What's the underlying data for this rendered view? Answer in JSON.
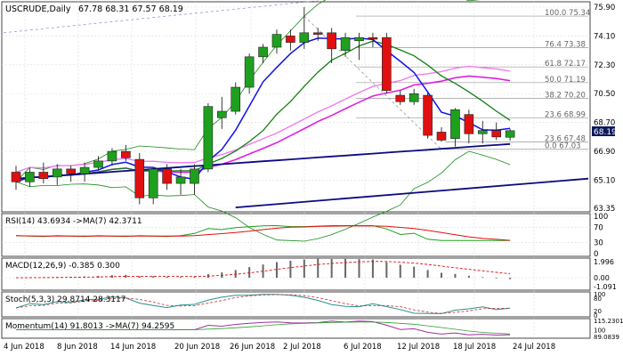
{
  "header": {
    "symbol_label": "USCRUDE,Daily",
    "ohlc_label": "67.78 68.31 67.57 68.19"
  },
  "indicators": {
    "rsi_label": "RSI(14) 43.6934 ->MA(7) 42.3711",
    "macd_label": "MACD(12,26,9) -0.385 0.300",
    "stoch_label": "Stoch(5,3,3) 29.8714 28.3117",
    "momentum_label": "Momentum(14) 91.8013 ->MA(7) 94.2595"
  },
  "colors": {
    "bull": "#1ea01e",
    "bear": "#e01010",
    "blue_ma": "#1010ee",
    "navy_ma": "#0a0a80",
    "green_ma": "#138013",
    "magenta": "#e020e0",
    "pink": "#f07cf0",
    "bands": "#1a8a1a",
    "price_box": "#0a1a5a",
    "grid": "#dcdcdc",
    "fib": "#999999"
  },
  "chart_data": [
    {
      "type": "candlestick",
      "panel": "price",
      "x_ticks": [
        "4 Jun 2018",
        "8 Jun 2018",
        "14 Jun 2018",
        "20 Jun 2018",
        "26 Jun 2018",
        "2 Jul 2018",
        "6 Jul 2018",
        "12 Jul 2018",
        "18 Jul 2018",
        "24 Jul 2018"
      ],
      "y_ticks": [
        "75.90",
        "74.10",
        "72.30",
        "70.50",
        "68.70",
        "66.90",
        "65.10",
        "63.35"
      ],
      "ylim": [
        63.35,
        75.9
      ],
      "last_price": "68.19",
      "candles": [
        {
          "o": 65.6,
          "h": 66.0,
          "l": 64.5,
          "c": 65.0
        },
        {
          "o": 65.0,
          "h": 65.9,
          "l": 64.7,
          "c": 65.6
        },
        {
          "o": 65.6,
          "h": 66.2,
          "l": 64.9,
          "c": 65.2
        },
        {
          "o": 65.3,
          "h": 66.1,
          "l": 64.8,
          "c": 65.8
        },
        {
          "o": 65.8,
          "h": 66.0,
          "l": 65.0,
          "c": 65.5
        },
        {
          "o": 65.5,
          "h": 66.2,
          "l": 65.0,
          "c": 65.9
        },
        {
          "o": 65.9,
          "h": 66.6,
          "l": 65.7,
          "c": 66.3
        },
        {
          "o": 66.3,
          "h": 67.1,
          "l": 66.0,
          "c": 66.9
        },
        {
          "o": 66.9,
          "h": 67.3,
          "l": 66.3,
          "c": 66.5
        },
        {
          "o": 66.4,
          "h": 66.8,
          "l": 63.6,
          "c": 64.0
        },
        {
          "o": 64.0,
          "h": 65.9,
          "l": 63.6,
          "c": 65.8
        },
        {
          "o": 65.8,
          "h": 66.1,
          "l": 64.5,
          "c": 64.9
        },
        {
          "o": 64.9,
          "h": 65.8,
          "l": 64.2,
          "c": 65.3
        },
        {
          "o": 64.9,
          "h": 66.1,
          "l": 64.2,
          "c": 65.8
        },
        {
          "o": 65.8,
          "h": 69.9,
          "l": 65.6,
          "c": 69.7
        },
        {
          "o": 69.0,
          "h": 70.3,
          "l": 68.3,
          "c": 69.4
        },
        {
          "o": 69.4,
          "h": 71.2,
          "l": 69.2,
          "c": 70.9
        },
        {
          "o": 70.9,
          "h": 73.0,
          "l": 70.5,
          "c": 72.8
        },
        {
          "o": 72.8,
          "h": 73.6,
          "l": 72.4,
          "c": 73.4
        },
        {
          "o": 73.4,
          "h": 74.5,
          "l": 73.0,
          "c": 74.2
        },
        {
          "o": 74.1,
          "h": 74.5,
          "l": 73.2,
          "c": 73.7
        },
        {
          "o": 73.7,
          "h": 75.9,
          "l": 73.3,
          "c": 74.3
        },
        {
          "o": 74.3,
          "h": 74.6,
          "l": 73.8,
          "c": 74.2
        },
        {
          "o": 74.3,
          "h": 74.6,
          "l": 72.4,
          "c": 73.3
        },
        {
          "o": 73.2,
          "h": 74.3,
          "l": 72.8,
          "c": 74.0
        },
        {
          "o": 73.8,
          "h": 74.3,
          "l": 72.6,
          "c": 74.0
        },
        {
          "o": 74.0,
          "h": 74.3,
          "l": 73.4,
          "c": 73.9
        },
        {
          "o": 74.0,
          "h": 74.3,
          "l": 70.5,
          "c": 70.7
        },
        {
          "o": 70.4,
          "h": 70.7,
          "l": 69.8,
          "c": 70.0
        },
        {
          "o": 70.0,
          "h": 70.8,
          "l": 69.8,
          "c": 70.5
        },
        {
          "o": 70.4,
          "h": 70.6,
          "l": 67.7,
          "c": 67.9
        },
        {
          "o": 68.1,
          "h": 68.4,
          "l": 67.5,
          "c": 67.6
        },
        {
          "o": 67.7,
          "h": 69.6,
          "l": 67.2,
          "c": 69.5
        },
        {
          "o": 69.2,
          "h": 69.5,
          "l": 67.4,
          "c": 68.0
        },
        {
          "o": 68.0,
          "h": 68.8,
          "l": 67.4,
          "c": 68.2
        },
        {
          "o": 68.2,
          "h": 68.7,
          "l": 67.6,
          "c": 67.8
        },
        {
          "o": 67.78,
          "h": 68.31,
          "l": 67.57,
          "c": 68.19
        }
      ],
      "fibonacci": [
        {
          "label": "100.0 75.34",
          "price": 75.34
        },
        {
          "label": "76.4 73.38",
          "price": 73.38
        },
        {
          "label": "61.8 72.17",
          "price": 72.17
        },
        {
          "label": "50.0 71.19",
          "price": 71.19
        },
        {
          "label": "38.2 70.20",
          "price": 70.2
        },
        {
          "label": "23.6 68.99",
          "price": 68.99
        },
        {
          "label": "23.6 67.48",
          "price": 67.48
        },
        {
          "label": "0.0 67.03",
          "price": 67.03
        }
      ]
    },
    {
      "type": "line",
      "panel": "rsi",
      "y_ticks": [
        "100",
        "70",
        "30",
        "0"
      ],
      "ylim": [
        0,
        100
      ]
    },
    {
      "type": "bar",
      "panel": "macd",
      "y_ticks": [
        "1.996",
        "0.00",
        "-1.091"
      ],
      "ylim": [
        -1.091,
        1.996
      ]
    },
    {
      "type": "line",
      "panel": "stoch",
      "y_ticks": [
        "100",
        "80",
        "20",
        "0"
      ],
      "ylim": [
        0,
        100
      ]
    },
    {
      "type": "line",
      "panel": "momentum",
      "y_ticks": [
        "115.2301",
        "100",
        "89.0839"
      ],
      "ylim": [
        89.0839,
        115.2301
      ]
    }
  ]
}
